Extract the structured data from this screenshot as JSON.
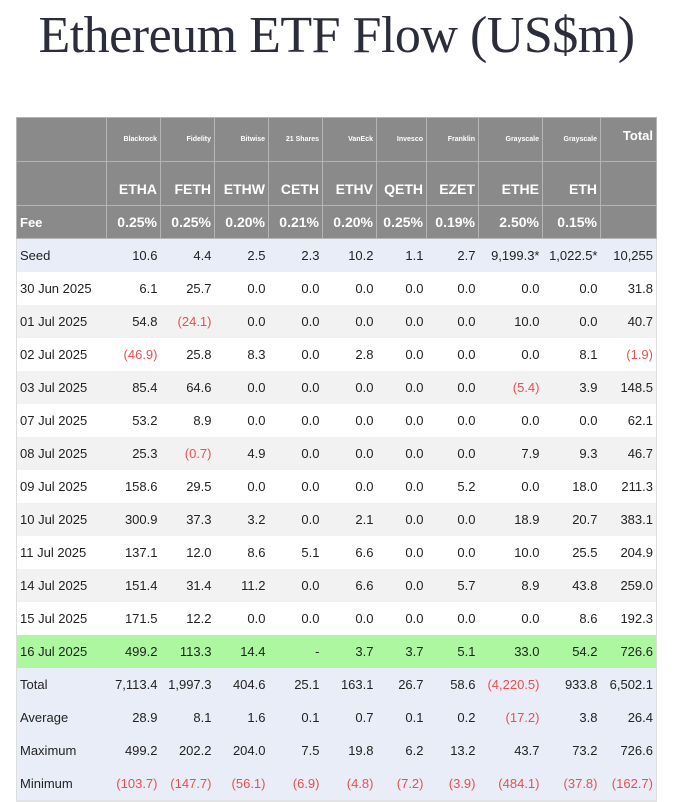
{
  "title": "Ethereum ETF Flow (US$m)",
  "colors": {
    "header_bg": "#8a8a8a",
    "negative": "#e8504f",
    "highlight_row": "#adf7a0",
    "summary_row": "#e9edf7"
  },
  "header": {
    "providers": [
      "Blackrock",
      "Fidelity",
      "Bitwise",
      "21 Shares",
      "VanEck",
      "Invesco",
      "Franklin",
      "Grayscale",
      "Grayscale"
    ],
    "total_label": "Total",
    "tickers": [
      "ETHA",
      "FETH",
      "ETHW",
      "CETH",
      "ETHV",
      "QETH",
      "EZET",
      "ETHE",
      "ETH"
    ],
    "fee_label": "Fee",
    "fees": [
      "0.25%",
      "0.25%",
      "0.20%",
      "0.21%",
      "0.20%",
      "0.25%",
      "0.19%",
      "2.50%",
      "0.15%"
    ]
  },
  "rows": [
    {
      "label": "Seed",
      "type": "summary",
      "values": [
        "10.6",
        "4.4",
        "2.5",
        "2.3",
        "10.2",
        "1.1",
        "2.7",
        "9,199.3*",
        "1,022.5*",
        "10,255"
      ]
    },
    {
      "label": "30 Jun 2025",
      "type": "odd",
      "values": [
        "6.1",
        "25.7",
        "0.0",
        "0.0",
        "0.0",
        "0.0",
        "0.0",
        "0.0",
        "0.0",
        "31.8"
      ]
    },
    {
      "label": "01 Jul 2025",
      "type": "even",
      "values": [
        "54.8",
        "(24.1)",
        "0.0",
        "0.0",
        "0.0",
        "0.0",
        "0.0",
        "10.0",
        "0.0",
        "40.7"
      ]
    },
    {
      "label": "02 Jul 2025",
      "type": "odd",
      "values": [
        "(46.9)",
        "25.8",
        "8.3",
        "0.0",
        "2.8",
        "0.0",
        "0.0",
        "0.0",
        "8.1",
        "(1.9)"
      ]
    },
    {
      "label": "03 Jul 2025",
      "type": "even",
      "values": [
        "85.4",
        "64.6",
        "0.0",
        "0.0",
        "0.0",
        "0.0",
        "0.0",
        "(5.4)",
        "3.9",
        "148.5"
      ]
    },
    {
      "label": "07 Jul 2025",
      "type": "odd",
      "values": [
        "53.2",
        "8.9",
        "0.0",
        "0.0",
        "0.0",
        "0.0",
        "0.0",
        "0.0",
        "0.0",
        "62.1"
      ]
    },
    {
      "label": "08 Jul 2025",
      "type": "even",
      "values": [
        "25.3",
        "(0.7)",
        "4.9",
        "0.0",
        "0.0",
        "0.0",
        "0.0",
        "7.9",
        "9.3",
        "46.7"
      ]
    },
    {
      "label": "09 Jul 2025",
      "type": "odd",
      "values": [
        "158.6",
        "29.5",
        "0.0",
        "0.0",
        "0.0",
        "0.0",
        "5.2",
        "0.0",
        "18.0",
        "211.3"
      ]
    },
    {
      "label": "10 Jul 2025",
      "type": "even",
      "values": [
        "300.9",
        "37.3",
        "3.2",
        "0.0",
        "2.1",
        "0.0",
        "0.0",
        "18.9",
        "20.7",
        "383.1"
      ]
    },
    {
      "label": "11 Jul 2025",
      "type": "odd",
      "values": [
        "137.1",
        "12.0",
        "8.6",
        "5.1",
        "6.6",
        "0.0",
        "0.0",
        "10.0",
        "25.5",
        "204.9"
      ]
    },
    {
      "label": "14 Jul 2025",
      "type": "even",
      "values": [
        "151.4",
        "31.4",
        "11.2",
        "0.0",
        "6.6",
        "0.0",
        "5.7",
        "8.9",
        "43.8",
        "259.0"
      ]
    },
    {
      "label": "15 Jul 2025",
      "type": "odd",
      "values": [
        "171.5",
        "12.2",
        "0.0",
        "0.0",
        "0.0",
        "0.0",
        "0.0",
        "0.0",
        "8.6",
        "192.3"
      ]
    },
    {
      "label": "16 Jul 2025",
      "type": "latest",
      "values": [
        "499.2",
        "113.3",
        "14.4",
        "-",
        "3.7",
        "3.7",
        "5.1",
        "33.0",
        "54.2",
        "726.6"
      ]
    },
    {
      "label": "Total",
      "type": "summary",
      "values": [
        "7,113.4",
        "1,997.3",
        "404.6",
        "25.1",
        "163.1",
        "26.7",
        "58.6",
        "(4,220.5)",
        "933.8",
        "6,502.1"
      ]
    },
    {
      "label": "Average",
      "type": "summary",
      "values": [
        "28.9",
        "8.1",
        "1.6",
        "0.1",
        "0.7",
        "0.1",
        "0.2",
        "(17.2)",
        "3.8",
        "26.4"
      ]
    },
    {
      "label": "Maximum",
      "type": "summary",
      "values": [
        "499.2",
        "202.2",
        "204.0",
        "7.5",
        "19.8",
        "6.2",
        "13.2",
        "43.7",
        "73.2",
        "726.6"
      ]
    },
    {
      "label": "Minimum",
      "type": "summary",
      "values": [
        "(103.7)",
        "(147.7)",
        "(56.1)",
        "(6.9)",
        "(4.8)",
        "(7.2)",
        "(3.9)",
        "(484.1)",
        "(37.8)",
        "(162.7)"
      ]
    }
  ]
}
